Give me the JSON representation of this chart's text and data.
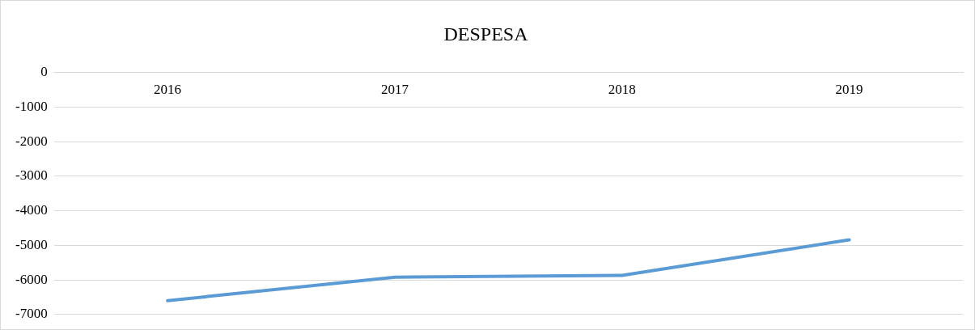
{
  "chart_data": {
    "type": "line",
    "title": "DESPESA",
    "categories": [
      "2016",
      "2017",
      "2018",
      "2019"
    ],
    "series": [
      {
        "color": "#5b9bd5",
        "values": [
          -6600,
          -5920,
          -5870,
          -4840
        ]
      }
    ],
    "ylim": [
      -7000,
      0
    ],
    "yticks": [
      0,
      -1000,
      -2000,
      -3000,
      -4000,
      -5000,
      -6000,
      -7000
    ],
    "grid": "y",
    "legend": false,
    "marker": "none"
  }
}
